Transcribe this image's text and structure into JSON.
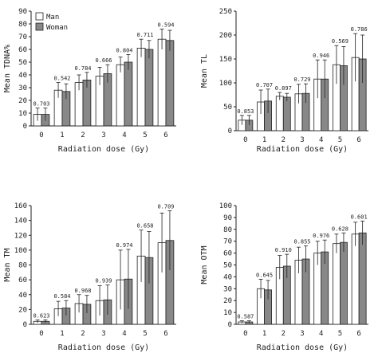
{
  "colors": {
    "man": "#ffffff",
    "woman": "#888888",
    "stroke": "#222222"
  },
  "chart_data": [
    {
      "id": "tdna",
      "type": "bar",
      "ylabel": "Mean TDNA%",
      "xlabel": "Radiation dose (Gy)",
      "categories": [
        "0",
        "1",
        "2",
        "3",
        "4",
        "5",
        "6"
      ],
      "ylim": [
        0,
        90
      ],
      "yticks": [
        0,
        10,
        20,
        30,
        40,
        50,
        60,
        70,
        80,
        90
      ],
      "legend": {
        "entries": [
          "Man",
          "Woman"
        ],
        "position": "top-left"
      },
      "series": [
        {
          "name": "Man",
          "values": [
            9,
            28,
            34,
            39,
            48,
            61,
            68
          ],
          "err": [
            5,
            6,
            6,
            7,
            6,
            7,
            8
          ]
        },
        {
          "name": "Woman",
          "values": [
            9,
            27,
            36,
            41,
            50,
            60,
            67
          ],
          "err": [
            5,
            6,
            6,
            7,
            6,
            7,
            8
          ]
        }
      ],
      "annotations": [
        "0.703",
        "0.542",
        "0.784",
        "0.666",
        "0.804",
        "0.711",
        "0.594"
      ]
    },
    {
      "id": "tl",
      "type": "bar",
      "ylabel": "Mean TL",
      "xlabel": "Radiation dose (Gy)",
      "categories": [
        "0",
        "1",
        "2",
        "3",
        "4",
        "5",
        "6"
      ],
      "ylim": [
        0,
        250
      ],
      "yticks": [
        0,
        50,
        100,
        150,
        200,
        250
      ],
      "series": [
        {
          "name": "Man",
          "values": [
            22,
            60,
            72,
            77,
            108,
            138,
            153
          ],
          "err": [
            10,
            25,
            8,
            20,
            40,
            40,
            50
          ]
        },
        {
          "name": "Woman",
          "values": [
            22,
            62,
            70,
            78,
            108,
            136,
            150
          ],
          "err": [
            10,
            25,
            8,
            20,
            40,
            40,
            50
          ]
        }
      ],
      "annotations": [
        "0.853",
        "0.707",
        "0.897",
        "0.729",
        "0.946",
        "0.569",
        "0.786"
      ]
    },
    {
      "id": "tm",
      "type": "bar",
      "ylabel": "Mean TM",
      "xlabel": "Radiation dose (Gy)",
      "categories": [
        "0",
        "1",
        "2",
        "3",
        "4",
        "5",
        "6"
      ],
      "ylim": [
        0,
        160
      ],
      "yticks": [
        0,
        20,
        40,
        60,
        80,
        100,
        120,
        140,
        160
      ],
      "series": [
        {
          "name": "Man",
          "values": [
            4,
            21,
            28,
            32,
            60,
            92,
            110
          ],
          "err": [
            2,
            10,
            12,
            20,
            40,
            35,
            40
          ]
        },
        {
          "name": "Woman",
          "values": [
            4,
            22,
            27,
            33,
            61,
            90,
            113
          ],
          "err": [
            2,
            10,
            12,
            20,
            40,
            35,
            40
          ]
        }
      ],
      "annotations": [
        "0.623",
        "0.584",
        "0.968",
        "0.939",
        "0.974",
        "0.658",
        "0.709"
      ]
    },
    {
      "id": "otm",
      "type": "bar",
      "ylabel": "Mean OTM",
      "xlabel": "Radiation dose (Gy)",
      "categories": [
        "0",
        "1",
        "2",
        "3",
        "4",
        "5",
        "6"
      ],
      "ylim": [
        0,
        100
      ],
      "yticks": [
        0,
        10,
        20,
        30,
        40,
        50,
        60,
        70,
        80,
        90,
        100
      ],
      "series": [
        {
          "name": "Man",
          "values": [
            2,
            30,
            48,
            54,
            60,
            68,
            76
          ],
          "err": [
            1,
            8,
            10,
            11,
            10,
            8,
            10
          ]
        },
        {
          "name": "Woman",
          "values": [
            2,
            29,
            49,
            55,
            61,
            69,
            77
          ],
          "err": [
            1,
            8,
            10,
            11,
            10,
            8,
            10
          ]
        }
      ],
      "annotations": [
        "0.587",
        "0.645",
        "0.910",
        "0.855",
        "0.976",
        "0.628",
        "0.601"
      ]
    }
  ]
}
